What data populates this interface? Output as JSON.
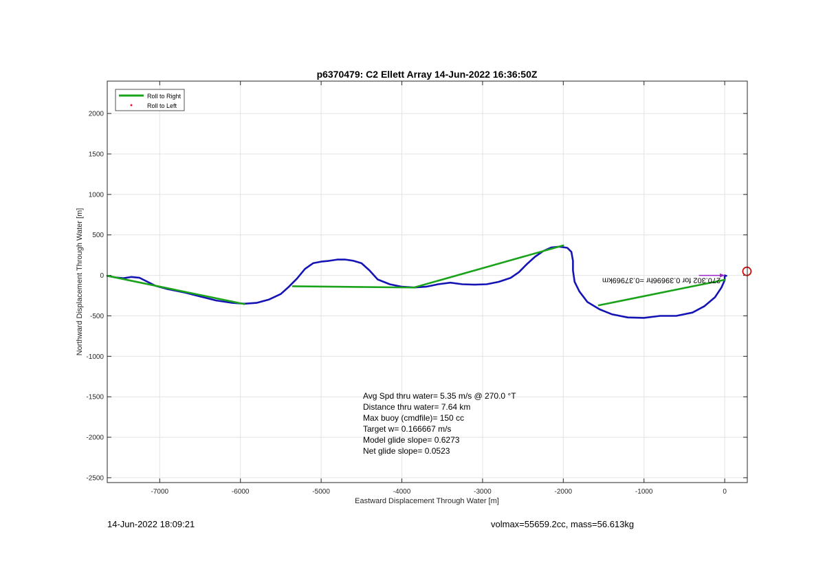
{
  "chart_data": {
    "type": "line",
    "title": "p6370479: C2 Ellett Array 14-Jun-2022 16:36:50Z",
    "xlabel": "Eastward Displacement Through Water [m]",
    "ylabel": "Northward Displacement Through Water [m]",
    "xlim": [
      -7650,
      280
    ],
    "ylim": [
      -2560,
      2400
    ],
    "xticks": [
      -7000,
      -6000,
      -5000,
      -4000,
      -3000,
      -2000,
      -1000,
      0
    ],
    "yticks": [
      -2500,
      -2000,
      -1500,
      -1000,
      -500,
      0,
      500,
      1000,
      1500,
      2000
    ],
    "grid": true,
    "legend_position": "top-left",
    "legend": [
      {
        "label": "Roll to Right",
        "color": "#1aa31a",
        "style": "line"
      },
      {
        "label": "Roll to Left",
        "color": "#e8102e",
        "style": "marker"
      }
    ],
    "series": [
      {
        "name": "",
        "color": "#1414b4",
        "points": [
          [
            -7650,
            -5
          ],
          [
            -7550,
            -25
          ],
          [
            -7450,
            -35
          ],
          [
            -7350,
            -20
          ],
          [
            -7250,
            -30
          ],
          [
            -7150,
            -80
          ],
          [
            -7050,
            -130
          ],
          [
            -6900,
            -170
          ],
          [
            -6700,
            -210
          ],
          [
            -6500,
            -260
          ],
          [
            -6300,
            -310
          ],
          [
            -6100,
            -340
          ],
          [
            -5950,
            -350
          ],
          [
            -5800,
            -340
          ],
          [
            -5650,
            -300
          ],
          [
            -5500,
            -230
          ],
          [
            -5400,
            -140
          ],
          [
            -5300,
            -40
          ],
          [
            -5200,
            80
          ],
          [
            -5100,
            150
          ],
          [
            -5000,
            170
          ],
          [
            -4900,
            180
          ],
          [
            -4800,
            195
          ],
          [
            -4700,
            195
          ],
          [
            -4600,
            180
          ],
          [
            -4500,
            150
          ],
          [
            -4400,
            60
          ],
          [
            -4300,
            -50
          ],
          [
            -4150,
            -110
          ],
          [
            -4000,
            -140
          ],
          [
            -3850,
            -150
          ],
          [
            -3700,
            -140
          ],
          [
            -3550,
            -110
          ],
          [
            -3400,
            -90
          ],
          [
            -3250,
            -110
          ],
          [
            -3100,
            -115
          ],
          [
            -2950,
            -110
          ],
          [
            -2800,
            -80
          ],
          [
            -2650,
            -30
          ],
          [
            -2550,
            40
          ],
          [
            -2450,
            140
          ],
          [
            -2350,
            230
          ],
          [
            -2250,
            300
          ],
          [
            -2150,
            345
          ],
          [
            -2050,
            355
          ],
          [
            -1950,
            340
          ],
          [
            -1900,
            290
          ],
          [
            -1880,
            180
          ],
          [
            -1880,
            60
          ],
          [
            -1860,
            -80
          ],
          [
            -1800,
            -200
          ],
          [
            -1700,
            -330
          ],
          [
            -1550,
            -420
          ],
          [
            -1400,
            -480
          ],
          [
            -1200,
            -520
          ],
          [
            -1000,
            -525
          ],
          [
            -800,
            -500
          ],
          [
            -600,
            -500
          ],
          [
            -400,
            -460
          ],
          [
            -250,
            -380
          ],
          [
            -120,
            -270
          ],
          [
            -40,
            -150
          ],
          [
            0,
            -60
          ],
          [
            0,
            0
          ],
          [
            20,
            -5
          ]
        ]
      },
      {
        "name": "Roll to Right",
        "color": "#1aa31a",
        "segments": [
          [
            [
              -7650,
              -5
            ],
            [
              -5950,
              -355
            ]
          ],
          [
            [
              -5350,
              -135
            ],
            [
              -3850,
              -150
            ]
          ],
          [
            [
              -3850,
              -150
            ],
            [
              -2000,
              370
            ]
          ],
          [
            [
              -1560,
              -370
            ],
            [
              0,
              -55
            ]
          ]
        ]
      },
      {
        "name": "Roll to Left",
        "color": "#e8102e",
        "points": []
      }
    ],
    "annotations": {
      "stats": [
        "Avg Spd thru water=  5.35 m/s @ 270.0 °T",
        "Distance thru water=  7.64 km",
        "Max buoy (cmdfile)= 150 cc",
        "Target w= 0.166667 m/s",
        "Model glide slope= 0.6273",
        "Net glide slope= 0.0523"
      ],
      "drift_label": "270.302 for 0.39696hr =0.37969km",
      "target_marker": {
        "x": 275,
        "y": 50,
        "color": "#cc1111"
      },
      "drift_arrow": {
        "from": [
          -320,
          0
        ],
        "to": [
          0,
          0
        ],
        "color": "#9a22c9"
      }
    }
  },
  "footer": {
    "left": "14-Jun-2022 18:09:21",
    "right": "volmax=55659.2cc, mass=56.613kg"
  }
}
